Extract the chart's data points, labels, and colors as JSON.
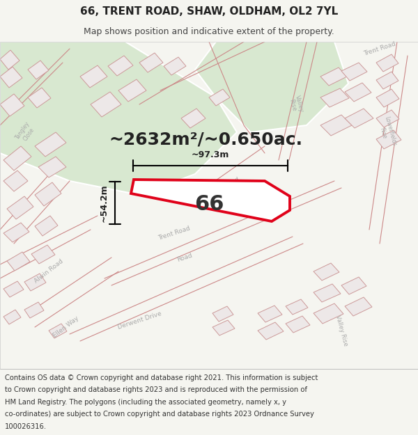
{
  "title": "66, TRENT ROAD, SHAW, OLDHAM, OL2 7YL",
  "subtitle": "Map shows position and indicative extent of the property.",
  "area_text": "~2632m²/~0.650ac.",
  "label_number": "66",
  "dim_width": "~97.3m",
  "dim_height": "~54.2m",
  "footer_lines": [
    "Contains OS data © Crown copyright and database right 2021. This information is subject",
    "to Crown copyright and database rights 2023 and is reproduced with the permission of",
    "HM Land Registry. The polygons (including the associated geometry, namely x, y",
    "co-ordinates) are subject to Crown copyright and database rights 2023 Ordnance Survey",
    "100026316."
  ],
  "bg_color": "#f5f5f0",
  "map_bg": "#ffffff",
  "red_color": "#e0021a",
  "light_green": "#d8e8d0",
  "road_col": "#cc8888",
  "block_fc": "#ede8e8",
  "block_ec": "#cc9999",
  "fig_width": 6.0,
  "fig_height": 6.25,
  "title_fontsize": 11,
  "subtitle_fontsize": 9,
  "area_fontsize": 18,
  "number_fontsize": 22,
  "dim_fontsize": 9,
  "footer_fontsize": 7.2,
  "road_label_color": "#aaaaaa",
  "road_label_fontsize": 6.5
}
